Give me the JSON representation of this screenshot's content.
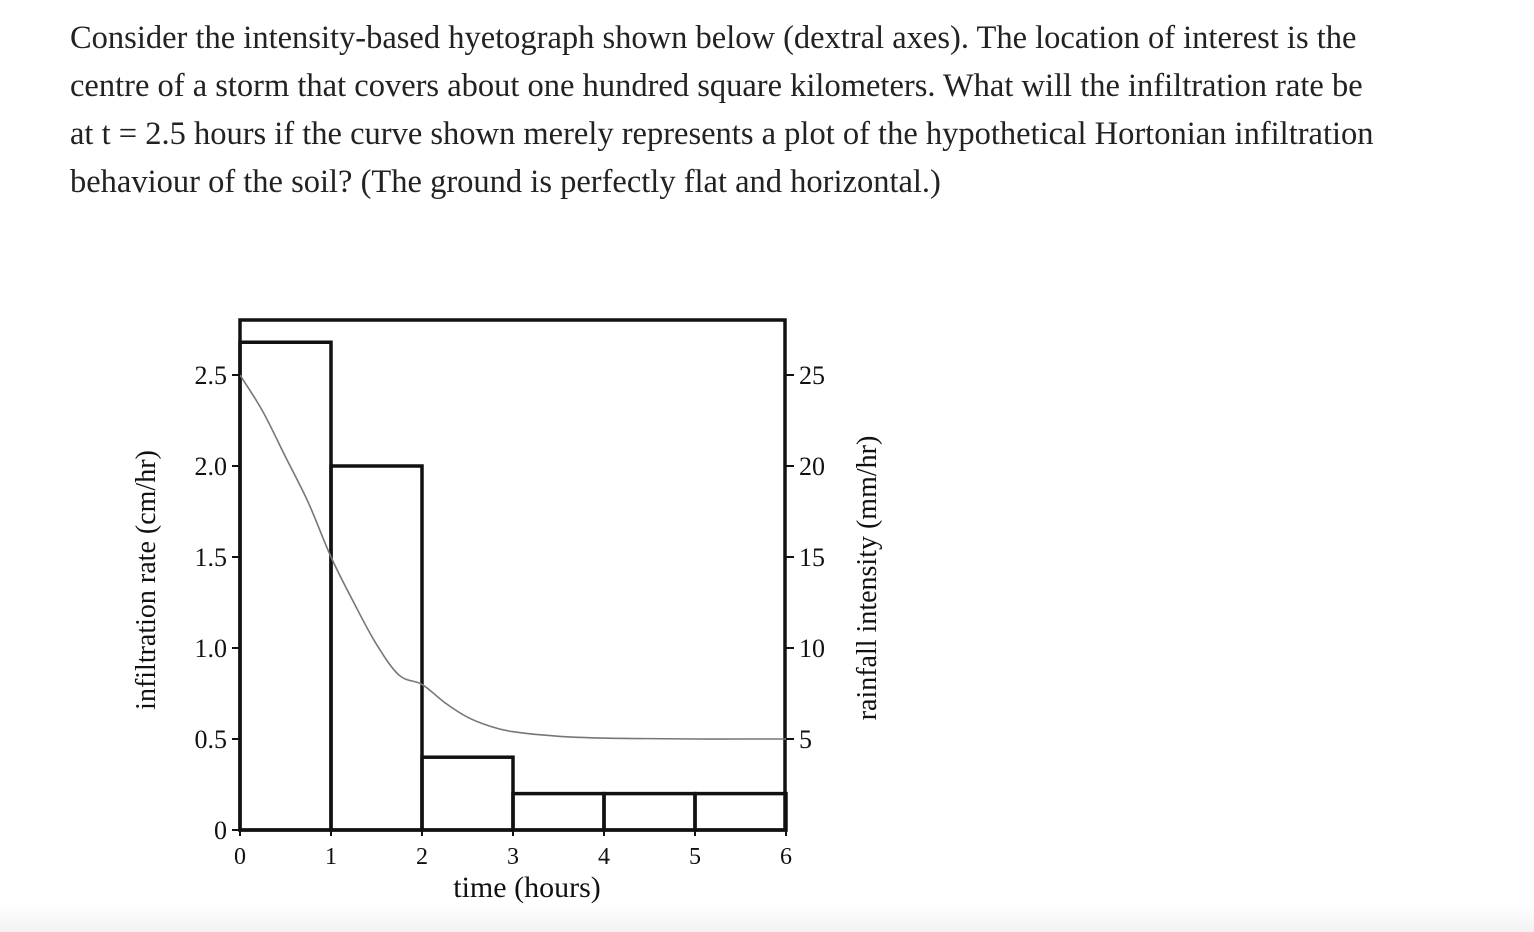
{
  "question": {
    "lines": [
      "Consider the intensity-based hyetograph shown below (dextral axes).  The location of interest is the",
      "centre of a storm that covers about one hundred square kilometers.  What will the infiltration rate be",
      "at t = 2.5 hours if the curve shown merely represents a plot of the hypothetical Hortonian infiltration",
      "behaviour of the soil?  (The ground is perfectly flat and horizontal.)"
    ]
  },
  "chart_data": {
    "type": "bar",
    "title": "",
    "xlabel": "time (hours)",
    "ylabel_left": "infiltration rate (cm/hr)",
    "ylabel_right": "rainfall intensity (mm/hr)",
    "xlim": [
      0,
      6
    ],
    "ylim_left": [
      0,
      2.5
    ],
    "ylim_right": [
      0,
      25
    ],
    "x_ticks": [
      "0",
      "1",
      "2",
      "3",
      "4",
      "5",
      "6"
    ],
    "y_left_ticks": [
      "0",
      "0.5",
      "1.0",
      "1.5",
      "2.0",
      "2.5"
    ],
    "y_right_ticks": [
      "5",
      "10",
      "15",
      "20",
      "25"
    ],
    "grid": false,
    "rainfall_bars": {
      "name": "rainfall intensity",
      "intervals": [
        [
          0,
          1
        ],
        [
          1,
          2
        ],
        [
          2,
          3
        ],
        [
          3,
          4
        ],
        [
          4,
          5
        ],
        [
          5,
          6
        ]
      ],
      "values": [
        26.8,
        20.0,
        4.0,
        2.0,
        2.0,
        2.0
      ]
    },
    "infiltration_curve": {
      "name": "infiltration rate",
      "x": [
        0,
        0.25,
        0.5,
        0.75,
        1.0,
        1.25,
        1.5,
        1.75,
        2.0,
        2.25,
        2.5,
        2.75,
        3.0,
        3.5,
        4.0,
        4.5,
        5.0,
        5.5,
        6.0
      ],
      "y": [
        2.5,
        2.3,
        2.05,
        1.8,
        1.5,
        1.25,
        1.02,
        0.85,
        0.8,
        0.7,
        0.62,
        0.57,
        0.54,
        0.515,
        0.505,
        0.502,
        0.5,
        0.5,
        0.5
      ]
    },
    "colors": {
      "bars": "#111111",
      "curve": "#777777"
    }
  }
}
